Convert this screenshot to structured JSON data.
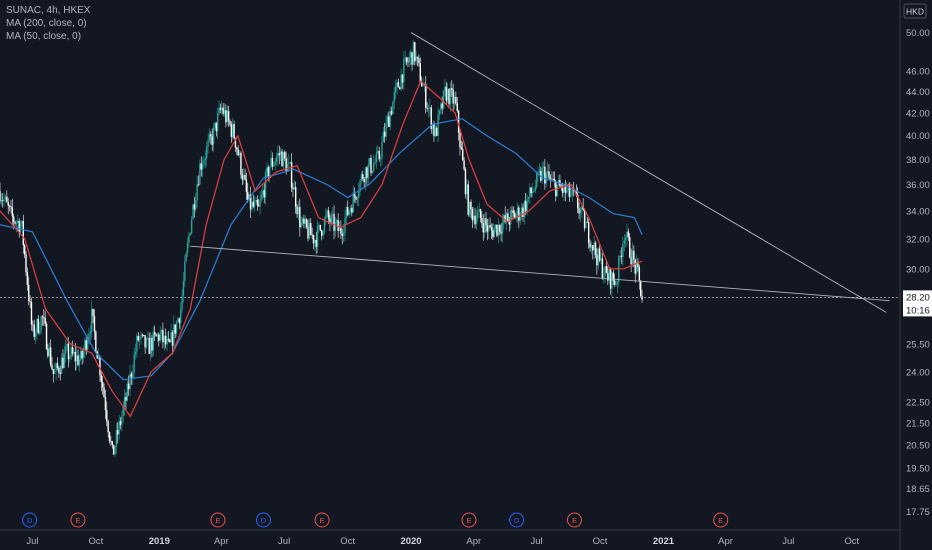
{
  "legend": {
    "symbol": "SUNAC, 4h, HKEX",
    "ma200": "MA (200, close, 0)",
    "ma50": "MA (50, close, 0)"
  },
  "currency_badge": "HKD",
  "price_label": {
    "price": "28.20",
    "countdown": "10:16"
  },
  "events": [
    {
      "label": "D",
      "kind": "dividend",
      "date": "2018-06-27"
    },
    {
      "label": "E",
      "kind": "earnings",
      "date": "2018-09-05"
    },
    {
      "label": "E",
      "kind": "earnings",
      "date": "2019-03-27"
    },
    {
      "label": "D",
      "kind": "dividend",
      "date": "2019-06-01"
    },
    {
      "label": "E",
      "kind": "earnings",
      "date": "2019-08-25"
    },
    {
      "label": "E",
      "kind": "earnings",
      "date": "2020-03-25"
    },
    {
      "label": "D",
      "kind": "dividend",
      "date": "2020-06-02"
    },
    {
      "label": "E",
      "kind": "earnings",
      "date": "2020-08-25"
    },
    {
      "label": "E",
      "kind": "earnings",
      "date": "2021-03-25"
    }
  ],
  "colors": {
    "background": "#131722",
    "candle_up": "#26a69a",
    "candle_down": "#ffffff",
    "ma50": "#e0413f",
    "ma200": "#2f7fd6",
    "trendline": "#b2b5be",
    "dividend": "#2962ff",
    "earnings": "#ef5350"
  },
  "chart_data": {
    "type": "candlestick",
    "title": "SUNAC, 4h, HKEX",
    "ylabel": "HKD",
    "y_scale": "log",
    "ylim": [
      17.5,
      52.5
    ],
    "xlim": [
      "2018-05-15",
      "2021-12-10"
    ],
    "y_ticks": [
      "17.75",
      "18.65",
      "19.50",
      "20.50",
      "21.50",
      "22.50",
      "24.00",
      "25.50",
      "28.00",
      "30.00",
      "32.00",
      "34.00",
      "36.00",
      "38.00",
      "40.00",
      "42.00",
      "44.00",
      "46.00",
      "50.00"
    ],
    "x_ticks": [
      {
        "label": "Jul",
        "date": "2018-07-01"
      },
      {
        "label": "Oct",
        "date": "2018-10-01"
      },
      {
        "label": "2019",
        "date": "2019-01-01",
        "bold": true
      },
      {
        "label": "Apr",
        "date": "2019-04-01"
      },
      {
        "label": "Jul",
        "date": "2019-07-01"
      },
      {
        "label": "Oct",
        "date": "2019-10-01"
      },
      {
        "label": "2020",
        "date": "2020-01-01",
        "bold": true
      },
      {
        "label": "Apr",
        "date": "2020-04-01"
      },
      {
        "label": "Jul",
        "date": "2020-07-01"
      },
      {
        "label": "Oct",
        "date": "2020-10-01"
      },
      {
        "label": "2021",
        "date": "2021-01-01",
        "bold": true
      },
      {
        "label": "Apr",
        "date": "2021-04-01"
      },
      {
        "label": "Jul",
        "date": "2021-07-01"
      },
      {
        "label": "Oct",
        "date": "2021-10-01"
      }
    ],
    "price_path": [
      [
        "2018-05-15",
        35.5
      ],
      [
        "2018-06-01",
        33.5
      ],
      [
        "2018-06-15",
        33.0
      ],
      [
        "2018-07-01",
        26.0
      ],
      [
        "2018-07-15",
        27.0
      ],
      [
        "2018-08-01",
        23.8
      ],
      [
        "2018-08-20",
        25.0
      ],
      [
        "2018-09-10",
        24.6
      ],
      [
        "2018-09-25",
        27.0
      ],
      [
        "2018-10-10",
        23.5
      ],
      [
        "2018-10-25",
        20.0
      ],
      [
        "2018-11-15",
        22.8
      ],
      [
        "2018-12-01",
        25.8
      ],
      [
        "2018-12-15",
        25.3
      ],
      [
        "2019-01-01",
        26.0
      ],
      [
        "2019-01-15",
        25.2
      ],
      [
        "2019-02-01",
        27.5
      ],
      [
        "2019-02-15",
        33.0
      ],
      [
        "2019-03-01",
        37.5
      ],
      [
        "2019-03-20",
        40.0
      ],
      [
        "2019-04-01",
        42.5
      ],
      [
        "2019-04-20",
        40.0
      ],
      [
        "2019-05-10",
        34.5
      ],
      [
        "2019-05-25",
        34.0
      ],
      [
        "2019-06-10",
        37.5
      ],
      [
        "2019-06-25",
        38.5
      ],
      [
        "2019-07-10",
        37.0
      ],
      [
        "2019-07-25",
        33.0
      ],
      [
        "2019-08-15",
        32.0
      ],
      [
        "2019-09-01",
        33.5
      ],
      [
        "2019-09-20",
        32.5
      ],
      [
        "2019-10-10",
        35.0
      ],
      [
        "2019-10-25",
        37.0
      ],
      [
        "2019-11-15",
        38.0
      ],
      [
        "2019-12-01",
        42.0
      ],
      [
        "2019-12-20",
        46.0
      ],
      [
        "2020-01-05",
        48.0
      ],
      [
        "2020-01-20",
        44.0
      ],
      [
        "2020-02-05",
        40.0
      ],
      [
        "2020-02-20",
        44.0
      ],
      [
        "2020-03-05",
        43.0
      ],
      [
        "2020-03-15",
        38.0
      ],
      [
        "2020-03-25",
        34.0
      ],
      [
        "2020-04-10",
        33.5
      ],
      [
        "2020-04-25",
        32.5
      ],
      [
        "2020-05-10",
        33.0
      ],
      [
        "2020-05-25",
        33.5
      ],
      [
        "2020-06-10",
        34.0
      ],
      [
        "2020-06-25",
        35.5
      ],
      [
        "2020-07-10",
        37.0
      ],
      [
        "2020-07-25",
        36.0
      ],
      [
        "2020-08-10",
        35.5
      ],
      [
        "2020-08-25",
        35.0
      ],
      [
        "2020-09-10",
        33.0
      ],
      [
        "2020-09-25",
        31.0
      ],
      [
        "2020-10-10",
        29.5
      ],
      [
        "2020-10-25",
        29.2
      ],
      [
        "2020-11-05",
        32.5
      ],
      [
        "2020-11-15",
        31.0
      ],
      [
        "2020-11-25",
        29.5
      ],
      [
        "2020-12-01",
        28.2
      ]
    ],
    "ma50_path": [
      [
        "2018-05-15",
        34.0
      ],
      [
        "2018-06-20",
        32.0
      ],
      [
        "2018-07-20",
        27.5
      ],
      [
        "2018-08-25",
        25.5
      ],
      [
        "2018-09-25",
        25.0
      ],
      [
        "2018-10-25",
        23.0
      ],
      [
        "2018-11-20",
        21.8
      ],
      [
        "2018-12-20",
        24.0
      ],
      [
        "2019-01-20",
        25.0
      ],
      [
        "2019-02-15",
        27.5
      ],
      [
        "2019-03-10",
        33.0
      ],
      [
        "2019-04-05",
        38.0
      ],
      [
        "2019-04-25",
        40.0
      ],
      [
        "2019-05-20",
        35.5
      ],
      [
        "2019-06-20",
        37.0
      ],
      [
        "2019-07-20",
        37.5
      ],
      [
        "2019-08-20",
        33.5
      ],
      [
        "2019-09-20",
        32.8
      ],
      [
        "2019-10-20",
        33.5
      ],
      [
        "2019-11-20",
        36.0
      ],
      [
        "2019-12-20",
        41.0
      ],
      [
        "2020-01-15",
        45.0
      ],
      [
        "2020-02-10",
        43.5
      ],
      [
        "2020-03-05",
        42.0
      ],
      [
        "2020-03-25",
        38.0
      ],
      [
        "2020-04-20",
        34.5
      ],
      [
        "2020-05-20",
        33.2
      ],
      [
        "2020-06-20",
        34.0
      ],
      [
        "2020-07-20",
        35.5
      ],
      [
        "2020-08-20",
        36.0
      ],
      [
        "2020-09-15",
        33.5
      ],
      [
        "2020-10-15",
        30.0
      ],
      [
        "2020-11-05",
        30.0
      ],
      [
        "2020-12-01",
        30.5
      ]
    ],
    "ma200_path": [
      [
        "2018-05-15",
        33.0
      ],
      [
        "2018-07-01",
        32.5
      ],
      [
        "2018-08-20",
        28.0
      ],
      [
        "2018-10-01",
        25.0
      ],
      [
        "2018-11-10",
        23.6
      ],
      [
        "2018-12-20",
        23.8
      ],
      [
        "2019-01-20",
        25.0
      ],
      [
        "2019-03-01",
        28.0
      ],
      [
        "2019-04-15",
        33.0
      ],
      [
        "2019-06-01",
        36.5
      ],
      [
        "2019-07-15",
        37.2
      ],
      [
        "2019-09-01",
        36.0
      ],
      [
        "2019-10-01",
        35.0
      ],
      [
        "2019-11-01",
        36.0
      ],
      [
        "2019-12-15",
        38.5
      ],
      [
        "2020-02-01",
        41.0
      ],
      [
        "2020-03-15",
        41.5
      ],
      [
        "2020-04-20",
        40.0
      ],
      [
        "2020-06-01",
        38.5
      ],
      [
        "2020-07-10",
        36.5
      ],
      [
        "2020-08-10",
        36.0
      ],
      [
        "2020-09-15",
        35.0
      ],
      [
        "2020-10-20",
        33.8
      ],
      [
        "2020-11-20",
        33.5
      ],
      [
        "2020-12-01",
        32.3
      ]
    ],
    "trendlines": [
      {
        "name": "upper",
        "from": [
          "2020-01-01",
          50.0
        ],
        "to": [
          "2021-11-20",
          27.3
        ]
      },
      {
        "name": "lower",
        "from": [
          "2019-02-15",
          31.5
        ],
        "to": [
          "2021-11-25",
          28.0
        ]
      }
    ],
    "current_price": 28.2
  }
}
